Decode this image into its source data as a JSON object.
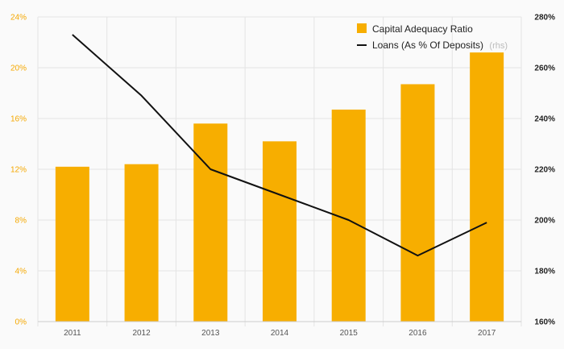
{
  "chart_data": {
    "type": "bar",
    "categories": [
      "2011",
      "2012",
      "2013",
      "2014",
      "2015",
      "2016",
      "2017"
    ],
    "series": [
      {
        "name": "Capital Adequacy Ratio",
        "type": "bar",
        "axis": "left",
        "color": "#f7ae00",
        "values": [
          12.2,
          12.4,
          15.6,
          14.2,
          16.7,
          18.7,
          21.2
        ]
      },
      {
        "name": "Loans (As % Of Deposits)",
        "legend_suffix": "(rhs)",
        "type": "line",
        "axis": "right",
        "color": "#111111",
        "values": [
          273,
          249,
          220,
          210,
          200,
          186,
          199
        ]
      }
    ],
    "left_axis": {
      "ylim": [
        0,
        24
      ],
      "ticks": [
        0,
        4,
        8,
        12,
        16,
        20,
        24
      ],
      "tick_labels": [
        "0%",
        "4%",
        "8%",
        "12%",
        "16%",
        "20%",
        "24%"
      ],
      "color": "#f5a800"
    },
    "right_axis": {
      "ylim": [
        160,
        280
      ],
      "ticks": [
        160,
        180,
        200,
        220,
        240,
        260,
        280
      ],
      "tick_labels": [
        "160%",
        "180%",
        "200%",
        "220%",
        "240%",
        "260%",
        "280%"
      ]
    },
    "grid": true,
    "legend_position": "top-right"
  }
}
